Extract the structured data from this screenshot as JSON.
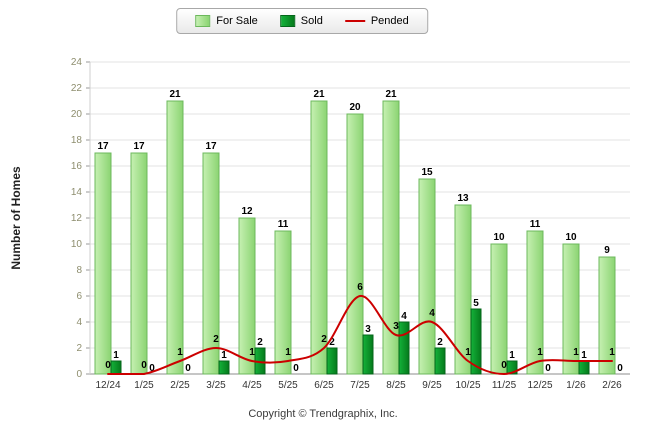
{
  "chart_data": {
    "type": "bar",
    "title": "",
    "categories": [
      "12/24",
      "1/25",
      "2/25",
      "3/25",
      "4/25",
      "5/25",
      "6/25",
      "7/25",
      "8/25",
      "9/25",
      "10/25",
      "11/25",
      "12/25",
      "1/26",
      "2/26"
    ],
    "series": [
      {
        "name": "For Sale",
        "type": "bar",
        "color1": "#c6f0b2",
        "color2": "#8bd472",
        "border": "#6cb85c",
        "values": [
          17,
          17,
          21,
          17,
          12,
          11,
          21,
          20,
          21,
          15,
          13,
          10,
          11,
          10,
          9
        ]
      },
      {
        "name": "Sold",
        "type": "bar",
        "color1": "#14b23a",
        "color2": "#057a1b",
        "border": "#04661a",
        "values": [
          1,
          0,
          0,
          1,
          2,
          0,
          2,
          3,
          4,
          2,
          5,
          1,
          0,
          1,
          0
        ]
      },
      {
        "name": "Pended",
        "type": "line",
        "color": "#cc0000",
        "values": [
          0,
          0,
          1,
          2,
          1,
          1,
          2,
          6,
          3,
          4,
          1,
          0,
          1,
          1,
          1
        ]
      }
    ],
    "xlabel": "",
    "ylabel": "Number of Homes",
    "ylim": [
      0,
      24
    ],
    "ytick_step": 2,
    "grid": true,
    "legend_position": "top",
    "colors": {
      "grid": "#e3e3e3",
      "baseline": "#8c8c8c",
      "y_tick_label": "#8e8e6e",
      "x_tick_label": "#333333",
      "value_label": "#000000",
      "axis_title": "#222222"
    }
  },
  "footer": {
    "copyright": "Copyright © Trendgraphix, Inc."
  }
}
